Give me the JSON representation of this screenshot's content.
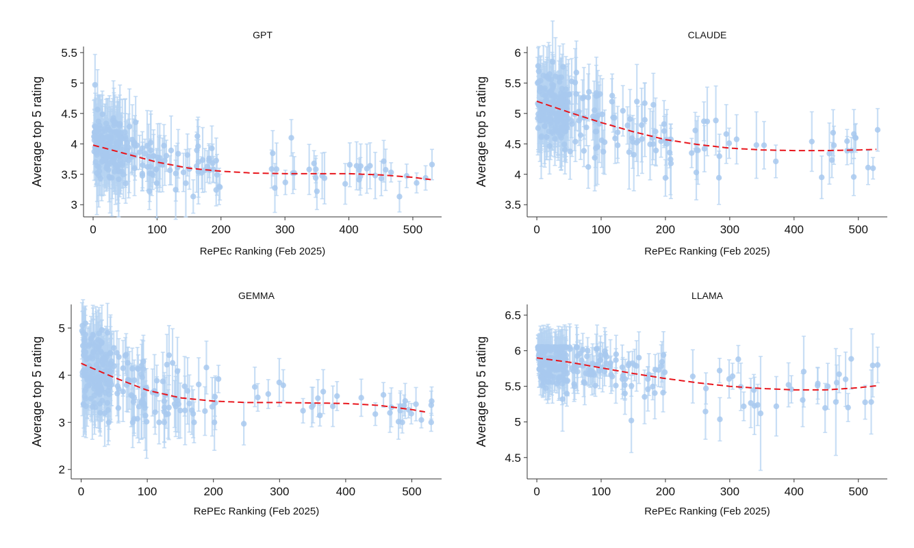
{
  "chart_data": [
    {
      "type": "scatter",
      "title": "GPT",
      "xlabel": "RePEc Ranking (Feb 2025)",
      "ylabel": "Average top 5 rating",
      "xlim": [
        -15,
        545
      ],
      "ylim": [
        2.8,
        5.6
      ],
      "xticks": [
        0,
        100,
        200,
        300,
        400,
        500
      ],
      "yticks": [
        3,
        3.5,
        4,
        4.5,
        5,
        5.5
      ],
      "fit": {
        "x": [
          0,
          50,
          100,
          150,
          200,
          250,
          300,
          350,
          400,
          450,
          500,
          530
        ],
        "y": [
          3.98,
          3.84,
          3.7,
          3.6,
          3.55,
          3.52,
          3.51,
          3.51,
          3.51,
          3.49,
          3.45,
          3.41
        ]
      },
      "base": {
        "knots_x": [
          0,
          50,
          100,
          150,
          200,
          250,
          300,
          350,
          400,
          450,
          500,
          530
        ],
        "knots_y": [
          3.98,
          3.84,
          3.7,
          3.6,
          3.55,
          3.52,
          3.51,
          3.51,
          3.51,
          3.49,
          3.45,
          3.41
        ],
        "spread_low": 0.45,
        "spread_high": 0.22,
        "err_low": 0.55,
        "err_high": 0.28,
        "y_min": 3.0,
        "y_max": 5.0
      },
      "points": [
        {
          "x": 3,
          "y": 4.97,
          "e": 0.5
        },
        {
          "x": 4,
          "y": 3.7,
          "e": 0.3
        },
        {
          "x": 88,
          "y": 3.22,
          "e": 0.3
        },
        {
          "x": 197,
          "y": 3.3,
          "e": 0.3
        },
        {
          "x": 310,
          "y": 4.1,
          "e": 0.3
        },
        {
          "x": 350,
          "y": 3.22,
          "e": 0.3
        },
        {
          "x": 520,
          "y": 3.44,
          "e": 0.2
        },
        {
          "x": 530,
          "y": 3.66,
          "e": 0.25
        }
      ]
    },
    {
      "type": "scatter",
      "title": "CLAUDE",
      "xlabel": "RePEc Ranking (Feb 2025)",
      "ylabel": "Average top 5 rating",
      "xlim": [
        -15,
        545
      ],
      "ylim": [
        3.3,
        6.1
      ],
      "xticks": [
        0,
        100,
        200,
        300,
        400,
        500
      ],
      "yticks": [
        3.5,
        4,
        4.5,
        5,
        5.5,
        6
      ],
      "fit": {
        "x": [
          0,
          50,
          100,
          150,
          200,
          250,
          300,
          350,
          400,
          450,
          500,
          530
        ],
        "y": [
          5.2,
          5.02,
          4.85,
          4.7,
          4.57,
          4.49,
          4.43,
          4.4,
          4.39,
          4.39,
          4.4,
          4.41
        ]
      },
      "base": {
        "knots_x": [
          0,
          50,
          100,
          150,
          200,
          250,
          300,
          350,
          400,
          450,
          500,
          530
        ],
        "knots_y": [
          5.2,
          5.02,
          4.85,
          4.7,
          4.57,
          4.49,
          4.43,
          4.4,
          4.39,
          4.39,
          4.4,
          4.41
        ],
        "spread_low": 0.55,
        "spread_high": 0.3,
        "err_low": 0.55,
        "err_high": 0.38,
        "y_min": 3.9,
        "y_max": 5.85
      },
      "points": [
        {
          "x": 2,
          "y": 5.78,
          "e": 0.3
        },
        {
          "x": 80,
          "y": 4.12,
          "e": 0.35
        },
        {
          "x": 200,
          "y": 3.94,
          "e": 0.3
        },
        {
          "x": 248,
          "y": 4.03,
          "e": 0.45
        },
        {
          "x": 443,
          "y": 3.95,
          "e": 0.35
        },
        {
          "x": 530,
          "y": 4.73,
          "e": 0.35
        }
      ]
    },
    {
      "type": "scatter",
      "title": "GEMMA",
      "xlabel": "RePEc Ranking (Feb 2025)",
      "ylabel": "Average top 5 rating",
      "xlim": [
        -15,
        545
      ],
      "ylim": [
        1.8,
        5.5
      ],
      "xticks": [
        0,
        100,
        200,
        300,
        400,
        500
      ],
      "yticks": [
        2,
        3,
        4,
        5
      ],
      "fit": {
        "x": [
          0,
          50,
          100,
          150,
          200,
          250,
          300,
          350,
          400,
          450,
          500,
          520
        ],
        "y": [
          4.25,
          3.95,
          3.68,
          3.52,
          3.45,
          3.42,
          3.42,
          3.41,
          3.4,
          3.36,
          3.27,
          3.22
        ]
      },
      "base": {
        "knots_x": [
          0,
          50,
          100,
          150,
          200,
          250,
          300,
          350,
          400,
          450,
          500,
          520
        ],
        "knots_y": [
          4.25,
          3.95,
          3.68,
          3.52,
          3.45,
          3.42,
          3.42,
          3.41,
          3.4,
          3.36,
          3.27,
          3.22
        ],
        "spread_low": 0.75,
        "spread_high": 0.3,
        "err_low": 0.7,
        "err_high": 0.35,
        "y_min": 3.0,
        "y_max": 5.1
      },
      "points": [
        {
          "x": 2,
          "y": 5.05,
          "e": 0.3
        },
        {
          "x": 246,
          "y": 2.97,
          "e": 0.45
        },
        {
          "x": 80,
          "y": 3.07,
          "e": 0.3
        },
        {
          "x": 530,
          "y": 3.45,
          "e": 0.3
        }
      ]
    },
    {
      "type": "scatter",
      "title": "LLAMA",
      "xlabel": "RePEc Ranking (Feb 2025)",
      "ylabel": "Average top 5 rating",
      "xlim": [
        -15,
        545
      ],
      "ylim": [
        4.2,
        6.65
      ],
      "xticks": [
        0,
        100,
        200,
        300,
        400,
        500
      ],
      "yticks": [
        4.5,
        5,
        5.5,
        6,
        6.5
      ],
      "fit": {
        "x": [
          0,
          50,
          100,
          150,
          200,
          250,
          300,
          350,
          400,
          450,
          500,
          530
        ],
        "y": [
          5.9,
          5.84,
          5.76,
          5.68,
          5.61,
          5.55,
          5.5,
          5.47,
          5.45,
          5.45,
          5.48,
          5.51
        ]
      },
      "base": {
        "knots_x": [
          0,
          50,
          100,
          150,
          200,
          250,
          300,
          350,
          400,
          450,
          500,
          530
        ],
        "knots_y": [
          5.9,
          5.84,
          5.76,
          5.68,
          5.61,
          5.55,
          5.5,
          5.47,
          5.45,
          5.45,
          5.48,
          5.51
        ],
        "spread_low": 0.35,
        "spread_high": 0.4,
        "err_low": 0.25,
        "err_high": 0.45,
        "y_min": 5.0,
        "y_max": 6.05
      },
      "points": [
        {
          "x": 2,
          "y": 6.02,
          "e": 0.15
        },
        {
          "x": 40,
          "y": 5.32,
          "e": 0.45
        },
        {
          "x": 147,
          "y": 5.02,
          "e": 0.45
        },
        {
          "x": 348,
          "y": 5.12,
          "e": 0.8
        },
        {
          "x": 465,
          "y": 5.28,
          "e": 0.75
        },
        {
          "x": 520,
          "y": 5.28,
          "e": 0.45
        },
        {
          "x": 530,
          "y": 5.8,
          "e": 0.25
        }
      ]
    }
  ]
}
